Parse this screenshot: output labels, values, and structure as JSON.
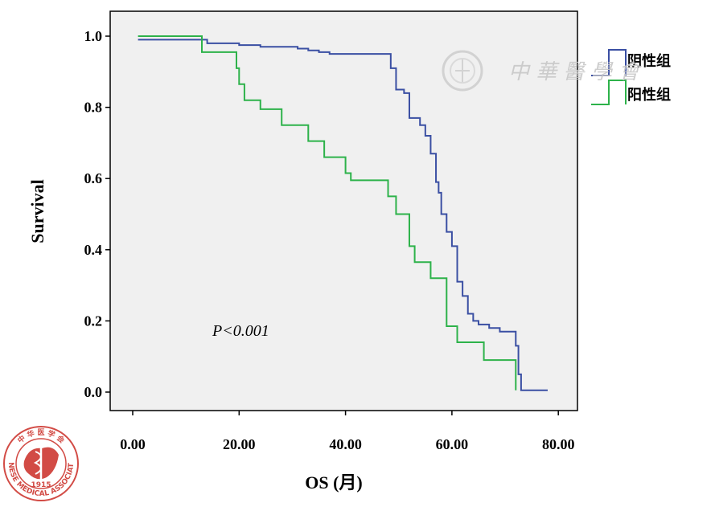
{
  "chart_data": {
    "type": "line",
    "step": true,
    "title": "",
    "xlabel": "OS (月)",
    "ylabel": "Survival",
    "xlim": [
      0,
      84
    ],
    "ylim": [
      0,
      1.05
    ],
    "x_ticks": [
      0,
      20,
      40,
      60,
      80
    ],
    "x_tick_labels": [
      "0.00",
      "20.00",
      "40.00",
      "60.00",
      "80.00"
    ],
    "y_ticks": [
      0.0,
      0.2,
      0.4,
      0.6,
      0.8,
      1.0
    ],
    "y_tick_labels": [
      "0.0",
      "0.2",
      "0.4",
      "0.6",
      "0.8",
      "1.0"
    ],
    "grid": false,
    "legend_position": "right",
    "annotation": "P<0.001",
    "series": [
      {
        "name": "阴性组",
        "color": "#3a4fa3",
        "x": [
          1.0,
          13.0,
          14.0,
          20.0,
          24.0,
          31.0,
          33.0,
          35.0,
          37.0,
          48.0,
          48.5,
          49.5,
          51.0,
          52.0,
          54.0,
          55.0,
          56.0,
          57.0,
          57.5,
          58.0,
          59.0,
          60.0,
          61.0,
          62.0,
          63.0,
          64.0,
          65.0,
          67.0,
          69.0,
          72.0,
          72.5,
          73.0,
          78.0
        ],
        "y": [
          0.99,
          0.99,
          0.98,
          0.975,
          0.97,
          0.965,
          0.96,
          0.955,
          0.95,
          0.95,
          0.91,
          0.85,
          0.84,
          0.77,
          0.75,
          0.72,
          0.67,
          0.59,
          0.56,
          0.5,
          0.45,
          0.41,
          0.31,
          0.27,
          0.22,
          0.2,
          0.19,
          0.18,
          0.17,
          0.13,
          0.05,
          0.005,
          0.005
        ]
      },
      {
        "name": "阳性组",
        "color": "#2db24a",
        "x": [
          1.0,
          13.0,
          19.5,
          20.0,
          21.0,
          24.0,
          28.0,
          33.0,
          36.0,
          40.0,
          41.0,
          48.0,
          49.5,
          52.0,
          53.0,
          56.0,
          59.0,
          61.0,
          66.0,
          72.0
        ],
        "y": [
          1.0,
          0.955,
          0.91,
          0.865,
          0.82,
          0.795,
          0.75,
          0.705,
          0.66,
          0.615,
          0.595,
          0.55,
          0.5,
          0.41,
          0.365,
          0.32,
          0.185,
          0.14,
          0.09,
          0.005
        ]
      }
    ]
  },
  "watermark": {
    "text": "中 華 醫 學 會"
  },
  "logo": {
    "top_text": "中 华 医 学 会",
    "bottom_text": "CHINESE MEDICAL ASSOCIATION",
    "year": "1915",
    "color": "#d24b45"
  }
}
